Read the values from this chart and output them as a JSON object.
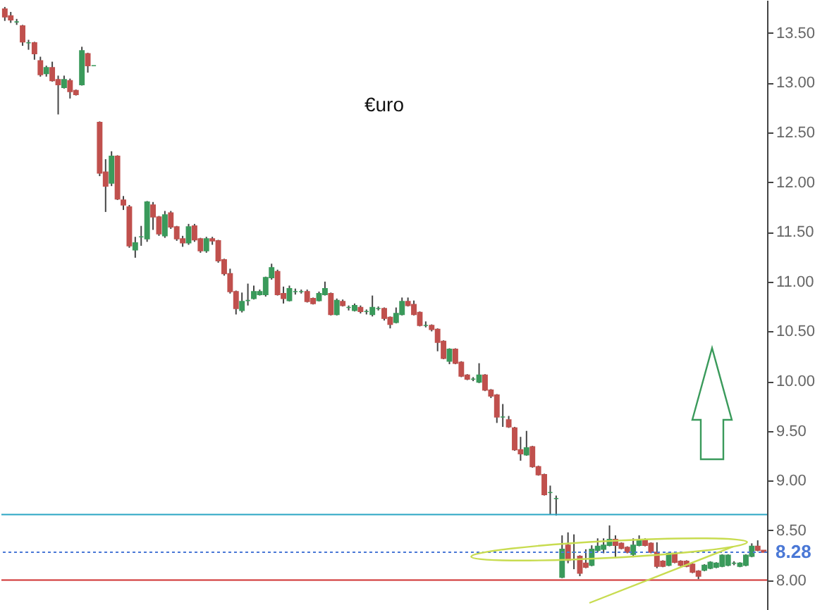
{
  "chart_data": {
    "type": "candlestick",
    "categories": [
      null,
      null,
      null,
      null,
      null,
      null,
      null,
      null,
      null,
      null,
      null,
      null,
      null,
      null,
      null,
      null,
      null,
      null,
      null,
      null,
      null,
      null,
      null,
      null,
      null,
      null,
      null,
      null,
      null,
      null,
      null,
      null,
      null,
      null,
      null,
      null,
      null,
      null,
      null,
      null,
      null,
      null,
      null,
      null,
      null,
      null,
      null,
      null,
      null,
      null,
      null,
      null,
      null,
      null,
      null,
      null,
      null,
      null,
      null,
      null,
      null,
      null,
      null,
      null,
      null,
      null,
      null,
      null,
      null,
      null,
      null,
      null,
      null,
      null,
      null,
      null,
      null,
      null,
      null,
      null,
      null,
      null,
      null,
      null,
      null,
      null,
      null,
      null,
      null,
      null,
      null,
      null,
      null,
      null,
      null,
      null,
      null,
      null,
      null,
      null,
      null,
      null,
      null,
      null,
      null,
      null,
      null,
      null,
      null,
      null,
      null,
      null,
      null,
      null,
      null,
      null,
      null,
      null,
      null,
      null,
      null,
      null,
      null,
      null,
      null,
      null,
      null,
      null,
      null
    ],
    "ohlc": [
      [
        13.74,
        13.76,
        13.62,
        13.66
      ],
      [
        13.67,
        13.71,
        13.6,
        13.63
      ],
      [
        13.61,
        13.64,
        13.58,
        13.61
      ],
      [
        13.57,
        13.58,
        13.37,
        13.41
      ],
      [
        13.4,
        13.43,
        13.33,
        13.4
      ],
      [
        13.4,
        13.41,
        13.23,
        13.29
      ],
      [
        13.22,
        13.26,
        13.06,
        13.08
      ],
      [
        13.09,
        13.17,
        13.06,
        13.15
      ],
      [
        13.15,
        13.21,
        13.01,
        13.02
      ],
      [
        13.03,
        13.07,
        12.68,
        12.98
      ],
      [
        12.95,
        13.07,
        12.94,
        13.03
      ],
      [
        13.02,
        13.04,
        12.84,
        12.91
      ],
      [
        12.92,
        12.93,
        12.87,
        12.88
      ],
      [
        12.98,
        13.36,
        12.97,
        13.32
      ],
      [
        13.29,
        13.3,
        13.1,
        13.17
      ],
      [
        13.17,
        13.17,
        13.17,
        13.17
      ],
      [
        12.6,
        12.61,
        12.06,
        12.09
      ],
      [
        12.1,
        12.23,
        11.7,
        11.96
      ],
      [
        11.99,
        12.31,
        11.96,
        12.26
      ],
      [
        12.26,
        12.27,
        11.82,
        11.83
      ],
      [
        11.82,
        11.86,
        11.72,
        11.77
      ],
      [
        11.75,
        11.77,
        11.34,
        11.36
      ],
      [
        11.32,
        11.45,
        11.24,
        11.39
      ],
      [
        11.45,
        11.56,
        11.36,
        11.45
      ],
      [
        11.43,
        11.81,
        11.4,
        11.8
      ],
      [
        11.77,
        11.8,
        11.52,
        11.65
      ],
      [
        11.65,
        11.66,
        11.46,
        11.48
      ],
      [
        11.46,
        11.71,
        11.44,
        11.67
      ],
      [
        11.69,
        11.71,
        11.53,
        11.55
      ],
      [
        11.55,
        11.56,
        11.41,
        11.43
      ],
      [
        11.43,
        11.46,
        11.35,
        11.39
      ],
      [
        11.39,
        11.58,
        11.37,
        11.55
      ],
      [
        11.56,
        11.58,
        11.4,
        11.42
      ],
      [
        11.43,
        11.44,
        11.29,
        11.31
      ],
      [
        11.31,
        11.45,
        11.29,
        11.43
      ],
      [
        11.43,
        11.45,
        11.37,
        11.41
      ],
      [
        11.41,
        11.42,
        11.19,
        11.21
      ],
      [
        11.22,
        11.23,
        11.06,
        11.08
      ],
      [
        11.08,
        11.13,
        10.88,
        10.9
      ],
      [
        10.9,
        10.91,
        10.67,
        10.73
      ],
      [
        10.71,
        10.89,
        10.69,
        10.8
      ],
      [
        10.81,
        10.98,
        10.76,
        10.81
      ],
      [
        10.83,
        10.96,
        10.82,
        10.9
      ],
      [
        10.87,
        10.92,
        10.86,
        10.9
      ],
      [
        10.87,
        11.05,
        10.85,
        11.04
      ],
      [
        11.04,
        11.18,
        11.02,
        11.14
      ],
      [
        11.1,
        11.12,
        10.86,
        10.87
      ],
      [
        10.88,
        10.95,
        10.78,
        10.83
      ],
      [
        10.81,
        10.96,
        10.8,
        10.93
      ],
      [
        10.9,
        10.93,
        10.87,
        10.9
      ],
      [
        10.9,
        10.92,
        10.88,
        10.9
      ],
      [
        10.9,
        10.92,
        10.79,
        10.8
      ],
      [
        10.83,
        10.84,
        10.77,
        10.78
      ],
      [
        10.81,
        10.9,
        10.8,
        10.88
      ],
      [
        10.87,
        11.0,
        10.86,
        10.93
      ],
      [
        10.88,
        10.89,
        10.66,
        10.67
      ],
      [
        10.67,
        10.83,
        10.66,
        10.81
      ],
      [
        10.8,
        10.82,
        10.75,
        10.76
      ],
      [
        10.74,
        10.76,
        10.71,
        10.74
      ],
      [
        10.71,
        10.78,
        10.7,
        10.76
      ],
      [
        10.74,
        10.76,
        10.68,
        10.7
      ],
      [
        10.7,
        10.72,
        10.67,
        10.7
      ],
      [
        10.67,
        10.86,
        10.65,
        10.74
      ],
      [
        10.73,
        10.75,
        10.71,
        10.73
      ],
      [
        10.73,
        10.74,
        10.61,
        10.63
      ],
      [
        10.64,
        10.65,
        10.53,
        10.57
      ],
      [
        10.59,
        10.74,
        10.58,
        10.68
      ],
      [
        10.67,
        10.84,
        10.66,
        10.8
      ],
      [
        10.8,
        10.84,
        10.75,
        10.76
      ],
      [
        10.77,
        10.81,
        10.66,
        10.67
      ],
      [
        10.69,
        10.7,
        10.55,
        10.56
      ],
      [
        10.56,
        10.6,
        10.54,
        10.56
      ],
      [
        10.56,
        10.57,
        10.5,
        10.52
      ],
      [
        10.52,
        10.53,
        10.3,
        10.39
      ],
      [
        10.4,
        10.41,
        10.22,
        10.23
      ],
      [
        10.2,
        10.33,
        10.17,
        10.32
      ],
      [
        10.32,
        10.33,
        10.17,
        10.18
      ],
      [
        10.19,
        10.2,
        10.04,
        10.05
      ],
      [
        10.06,
        10.07,
        10.01,
        10.02
      ],
      [
        10.02,
        10.04,
        10.0,
        10.02
      ],
      [
        9.99,
        10.18,
        9.98,
        10.06
      ],
      [
        10.06,
        10.07,
        9.9,
        9.91
      ],
      [
        9.91,
        9.92,
        9.83,
        9.85
      ],
      [
        9.86,
        9.87,
        9.58,
        9.64
      ],
      [
        9.64,
        9.77,
        9.54,
        9.64
      ],
      [
        9.61,
        9.65,
        9.53,
        9.54
      ],
      [
        9.53,
        9.54,
        9.3,
        9.31
      ],
      [
        9.31,
        9.44,
        9.2,
        9.27
      ],
      [
        9.26,
        9.5,
        9.25,
        9.33
      ],
      [
        9.34,
        9.35,
        9.13,
        9.14
      ],
      [
        9.14,
        9.15,
        9.05,
        9.06
      ],
      [
        9.06,
        9.07,
        8.85,
        8.86
      ],
      [
        8.88,
        8.95,
        8.66,
        8.88
      ],
      [
        8.82,
        8.85,
        8.65,
        8.82
      ],
      [
        8.03,
        8.45,
        8.02,
        8.31
      ],
      [
        8.35,
        8.48,
        8.17,
        8.2
      ],
      [
        8.28,
        8.46,
        8.11,
        8.28
      ],
      [
        8.24,
        8.25,
        8.04,
        8.07
      ],
      [
        8.17,
        8.31,
        8.12,
        8.13
      ],
      [
        8.15,
        8.35,
        8.14,
        8.31
      ],
      [
        8.3,
        8.42,
        8.28,
        8.34
      ],
      [
        8.31,
        8.42,
        8.27,
        8.35
      ],
      [
        8.35,
        8.55,
        8.34,
        8.41
      ],
      [
        8.41,
        8.45,
        8.23,
        8.35
      ],
      [
        8.37,
        8.38,
        8.31,
        8.32
      ],
      [
        8.33,
        8.34,
        8.27,
        8.28
      ],
      [
        8.26,
        8.42,
        8.23,
        8.35
      ],
      [
        8.35,
        8.45,
        8.34,
        8.41
      ],
      [
        8.41,
        8.42,
        8.34,
        8.35
      ],
      [
        8.37,
        8.38,
        8.27,
        8.28
      ],
      [
        8.28,
        8.38,
        8.12,
        8.14
      ],
      [
        8.19,
        8.2,
        8.13,
        8.14
      ],
      [
        8.15,
        8.28,
        8.14,
        8.27
      ],
      [
        8.27,
        8.28,
        8.17,
        8.18
      ],
      [
        8.19,
        8.2,
        8.14,
        8.15
      ],
      [
        8.19,
        8.2,
        8.13,
        8.14
      ],
      [
        8.16,
        8.17,
        8.07,
        8.08
      ],
      [
        8.09,
        8.1,
        8.01,
        8.04
      ],
      [
        8.1,
        8.16,
        8.09,
        8.15
      ],
      [
        8.12,
        8.19,
        8.11,
        8.18
      ],
      [
        8.13,
        8.18,
        8.12,
        8.17
      ],
      [
        8.14,
        8.26,
        8.13,
        8.25
      ],
      [
        8.15,
        8.26,
        8.14,
        8.25
      ],
      [
        8.17,
        8.19,
        8.15,
        8.17
      ],
      [
        8.14,
        8.18,
        8.13,
        8.17
      ],
      [
        8.15,
        8.26,
        8.14,
        8.25
      ],
      [
        8.24,
        8.37,
        8.23,
        8.34
      ],
      [
        8.34,
        8.4,
        8.29,
        8.3
      ],
      [
        8.3,
        8.3,
        8.28,
        8.28
      ]
    ],
    "colors": [
      "#c0504d",
      "#c0504d",
      "#3a9a5b",
      "#c0504d",
      "#3a9a5b",
      "#c0504d",
      "#c0504d",
      "#3a9a5b",
      "#c0504d",
      "#c0504d",
      "#3a9a5b",
      "#c0504d",
      "#c0504d",
      "#3a9a5b",
      "#c0504d",
      "#3a9a5b",
      "#c0504d",
      "#c0504d",
      "#3a9a5b",
      "#c0504d",
      "#c0504d",
      "#c0504d",
      "#3a9a5b",
      "#3a9a5b",
      "#3a9a5b",
      "#c0504d",
      "#c0504d",
      "#3a9a5b",
      "#c0504d",
      "#c0504d",
      "#c0504d",
      "#3a9a5b",
      "#c0504d",
      "#c0504d",
      "#3a9a5b",
      "#c0504d",
      "#c0504d",
      "#c0504d",
      "#c0504d",
      "#c0504d",
      "#3a9a5b",
      "#3a9a5b",
      "#3a9a5b",
      "#3a9a5b",
      "#3a9a5b",
      "#3a9a5b",
      "#c0504d",
      "#c0504d",
      "#3a9a5b",
      "#3a9a5b",
      "#3a9a5b",
      "#c0504d",
      "#c0504d",
      "#3a9a5b",
      "#3a9a5b",
      "#c0504d",
      "#3a9a5b",
      "#c0504d",
      "#3a9a5b",
      "#3a9a5b",
      "#c0504d",
      "#3a9a5b",
      "#3a9a5b",
      "#3a9a5b",
      "#c0504d",
      "#c0504d",
      "#3a9a5b",
      "#3a9a5b",
      "#c0504d",
      "#c0504d",
      "#c0504d",
      "#3a9a5b",
      "#c0504d",
      "#c0504d",
      "#c0504d",
      "#3a9a5b",
      "#c0504d",
      "#c0504d",
      "#c0504d",
      "#3a9a5b",
      "#3a9a5b",
      "#c0504d",
      "#c0504d",
      "#c0504d",
      "#3a9a5b",
      "#c0504d",
      "#c0504d",
      "#c0504d",
      "#3a9a5b",
      "#c0504d",
      "#c0504d",
      "#c0504d",
      "#3a9a5b",
      "#3a9a5b",
      "#3a9a5b",
      "#c0504d",
      "#3a9a5b",
      "#c0504d",
      "#c0504d",
      "#3a9a5b",
      "#3a9a5b",
      "#3a9a5b",
      "#3a9a5b",
      "#c0504d",
      "#c0504d",
      "#c0504d",
      "#3a9a5b",
      "#3a9a5b",
      "#c0504d",
      "#c0504d",
      "#c0504d",
      "#c0504d",
      "#3a9a5b",
      "#c0504d",
      "#c0504d",
      "#c0504d",
      "#c0504d",
      "#c0504d",
      "#3a9a5b",
      "#3a9a5b",
      "#3a9a5b",
      "#3a9a5b",
      "#3a9a5b",
      "#3a9a5b",
      "#3a9a5b",
      "#3a9a5b",
      "#3a9a5b",
      "#c0504d",
      "#c0504d"
    ],
    "ylim": [
      7.7,
      13.83
    ],
    "yticks": [
      {
        "value": 8,
        "label": "8.00"
      },
      {
        "value": 8.5,
        "label": "8.50"
      },
      {
        "value": 9,
        "label": "9.00"
      },
      {
        "value": 9.5,
        "label": "9.50"
      },
      {
        "value": 10,
        "label": "10.00"
      },
      {
        "value": 10.5,
        "label": "10.50"
      },
      {
        "value": 11,
        "label": "11.00"
      },
      {
        "value": 11.5,
        "label": "11.50"
      },
      {
        "value": 12,
        "label": "12.00"
      },
      {
        "value": 12.5,
        "label": "12.50"
      },
      {
        "value": 13,
        "label": "13.00"
      },
      {
        "value": 13.5,
        "label": "13.50"
      }
    ],
    "tick_labels": "y",
    "annotations": [
      "€uro"
    ],
    "ref_lines": [
      {
        "axis": "y",
        "value": 8.66,
        "color": "#2aa6c4",
        "line_style": "solid"
      },
      {
        "axis": "y",
        "value": 8.0,
        "color": "#d03030",
        "line_style": "solid"
      },
      {
        "axis": "y",
        "value": 8.28,
        "label": "8.28",
        "color": "#4a78d6",
        "line_style": "dotted"
      }
    ]
  }
}
